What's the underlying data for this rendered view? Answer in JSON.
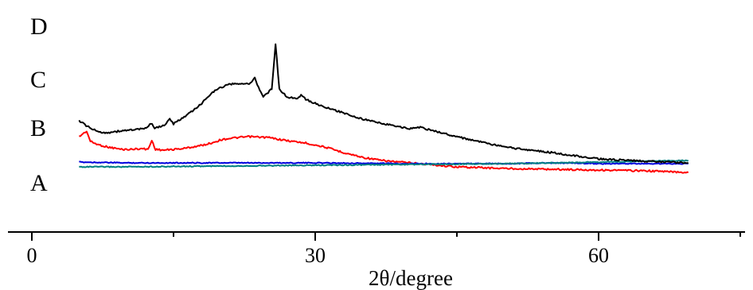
{
  "chart_data": {
    "type": "line",
    "title": "",
    "xlabel": "2θ/degree",
    "ylabel": "",
    "xlim": [
      0,
      75
    ],
    "y_axis_shown": false,
    "grid": false,
    "legend": "series labels at left of each trace",
    "x_ticks": [
      0,
      30,
      60
    ],
    "x_tick_labels": [
      "0",
      "30",
      "60"
    ],
    "minor_ticks": [
      15,
      45,
      75
    ],
    "series": [
      {
        "name": "D",
        "color": "#ff0000",
        "points": [
          [
            5,
            1.38
          ],
          [
            5.8,
            1.45
          ],
          [
            6.2,
            1.32
          ],
          [
            7,
            1.28
          ],
          [
            8,
            1.25
          ],
          [
            9.5,
            1.22
          ],
          [
            10.5,
            1.22
          ],
          [
            11.5,
            1.23
          ],
          [
            12.3,
            1.22
          ],
          [
            12.7,
            1.33
          ],
          [
            13.1,
            1.22
          ],
          [
            14,
            1.21
          ],
          [
            16,
            1.23
          ],
          [
            18,
            1.27
          ],
          [
            19,
            1.3
          ],
          [
            20,
            1.34
          ],
          [
            21,
            1.36
          ],
          [
            23,
            1.38
          ],
          [
            25,
            1.37
          ],
          [
            27,
            1.33
          ],
          [
            29,
            1.3
          ],
          [
            31,
            1.25
          ],
          [
            33,
            1.18
          ],
          [
            35,
            1.12
          ],
          [
            37,
            1.08
          ],
          [
            40,
            1.05
          ],
          [
            45,
            1.0
          ],
          [
            50,
            0.98
          ],
          [
            55,
            0.97
          ],
          [
            60,
            0.96
          ],
          [
            65,
            0.95
          ],
          [
            69.5,
            0.93
          ]
        ]
      },
      {
        "name": "C",
        "color": "#0000dd",
        "points": [
          [
            5,
            1.06
          ],
          [
            10,
            1.05
          ],
          [
            20,
            1.05
          ],
          [
            30,
            1.05
          ],
          [
            40,
            1.04
          ],
          [
            50,
            1.04
          ],
          [
            56,
            1.05
          ],
          [
            60,
            1.04
          ],
          [
            69.5,
            1.04
          ]
        ]
      },
      {
        "name": "B",
        "color": "#008080",
        "points": [
          [
            5,
            1.0
          ],
          [
            10,
            1.0
          ],
          [
            20,
            1.01
          ],
          [
            30,
            1.02
          ],
          [
            40,
            1.03
          ],
          [
            50,
            1.04
          ],
          [
            60,
            1.06
          ],
          [
            65,
            1.07
          ],
          [
            69.5,
            1.08
          ]
        ]
      },
      {
        "name": "A",
        "color": "#000000",
        "points": [
          [
            5,
            1.58
          ],
          [
            6,
            1.5
          ],
          [
            7,
            1.44
          ],
          [
            8,
            1.43
          ],
          [
            10,
            1.46
          ],
          [
            12,
            1.48
          ],
          [
            12.6,
            1.55
          ],
          [
            13,
            1.49
          ],
          [
            14,
            1.52
          ],
          [
            14.6,
            1.6
          ],
          [
            15,
            1.54
          ],
          [
            16,
            1.62
          ],
          [
            17,
            1.7
          ],
          [
            18,
            1.8
          ],
          [
            19,
            1.93
          ],
          [
            20,
            2.0
          ],
          [
            21,
            2.04
          ],
          [
            22,
            2.05
          ],
          [
            23,
            2.04
          ],
          [
            23.6,
            2.12
          ],
          [
            24,
            2.0
          ],
          [
            24.5,
            1.88
          ],
          [
            25.4,
            1.98
          ],
          [
            25.8,
            2.55
          ],
          [
            26.2,
            1.98
          ],
          [
            27,
            1.88
          ],
          [
            28,
            1.86
          ],
          [
            28.5,
            1.9
          ],
          [
            29,
            1.85
          ],
          [
            31,
            1.75
          ],
          [
            33,
            1.68
          ],
          [
            35,
            1.6
          ],
          [
            37,
            1.55
          ],
          [
            39,
            1.5
          ],
          [
            40,
            1.48
          ],
          [
            41,
            1.5
          ],
          [
            42,
            1.47
          ],
          [
            45,
            1.38
          ],
          [
            48,
            1.3
          ],
          [
            50,
            1.25
          ],
          [
            55,
            1.18
          ],
          [
            60,
            1.1
          ],
          [
            65,
            1.07
          ],
          [
            69.5,
            1.05
          ]
        ]
      }
    ]
  }
}
